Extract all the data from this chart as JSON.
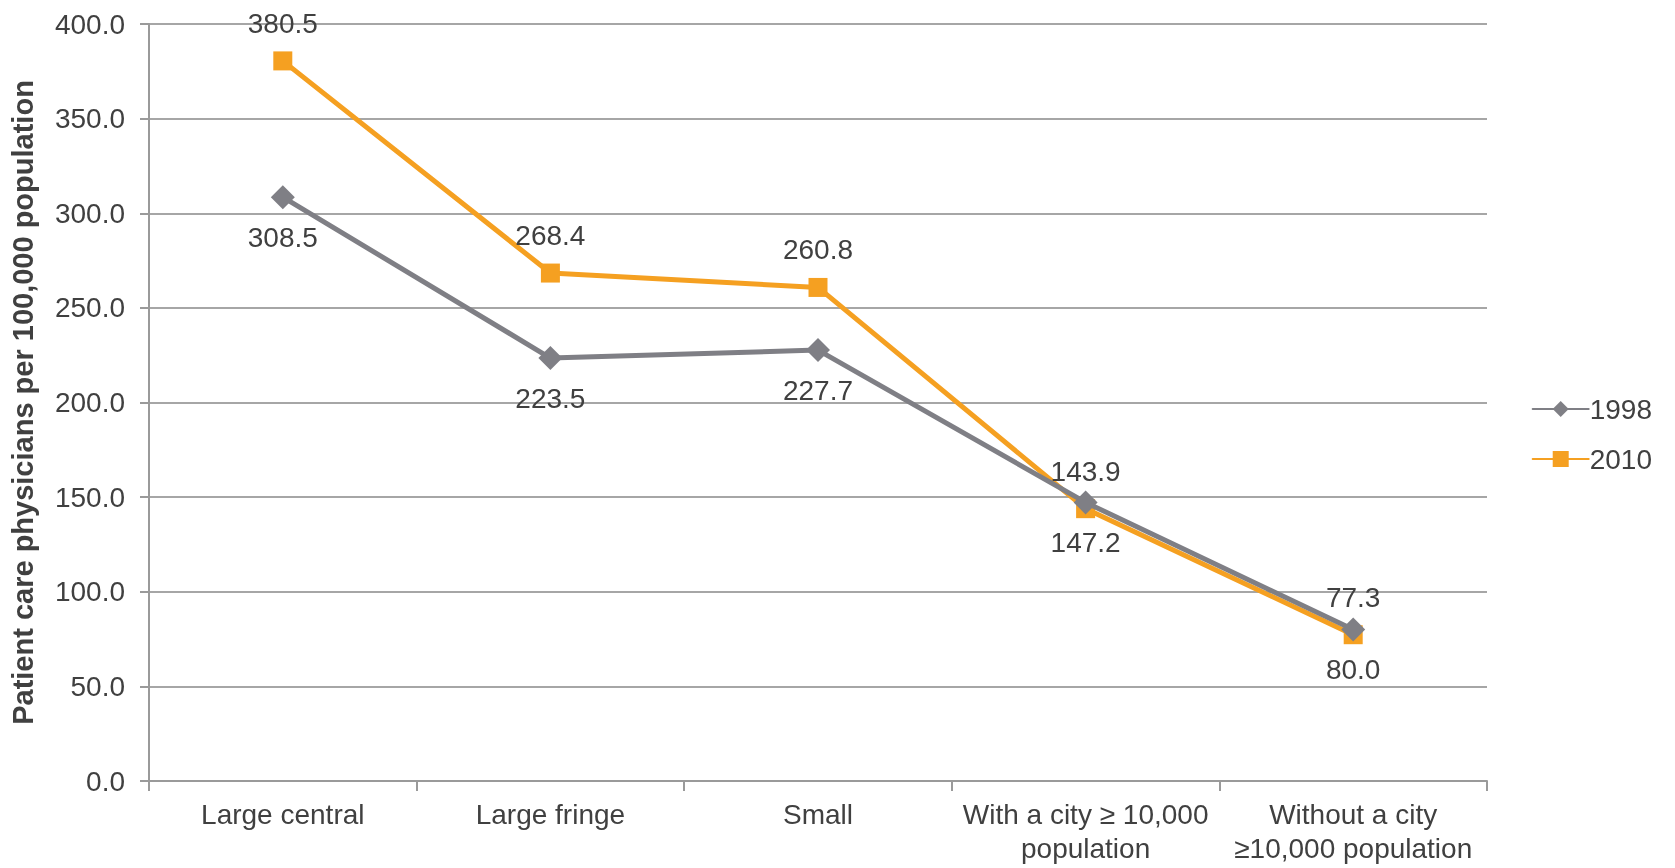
{
  "chart_data": {
    "type": "line",
    "ylabel": "Patient care physicians per 100,000 population",
    "categories": [
      "Large central",
      "Large fringe",
      "Small",
      "With a city ≥ 10,000 population",
      "Without a city ≥10,000 population"
    ],
    "series": [
      {
        "name": "1998",
        "color": "#7f7f85",
        "marker": "diamond",
        "values": [
          308.5,
          223.5,
          227.7,
          147.2,
          80.0
        ],
        "value_labels": [
          "308.5",
          "223.5",
          "227.7",
          "147.2",
          "80.0"
        ]
      },
      {
        "name": "2010",
        "color": "#f5a021",
        "marker": "square",
        "values": [
          380.5,
          268.4,
          260.8,
          143.9,
          77.3
        ],
        "value_labels": [
          "380.5",
          "268.4",
          "260.8",
          "143.9",
          "77.3"
        ]
      }
    ],
    "ylim": [
      0,
      400
    ],
    "yticks": [
      {
        "value": 0,
        "label": "0.0"
      },
      {
        "value": 50,
        "label": "50.0"
      },
      {
        "value": 100,
        "label": "100.0"
      },
      {
        "value": 150,
        "label": "150.0"
      },
      {
        "value": 200,
        "label": "200.0"
      },
      {
        "value": 250,
        "label": "250.0"
      },
      {
        "value": 300,
        "label": "300.0"
      },
      {
        "value": 350,
        "label": "350.0"
      },
      {
        "value": 400,
        "label": "400.0"
      }
    ],
    "grid": "y",
    "legend": "right",
    "line_style": "solid"
  }
}
